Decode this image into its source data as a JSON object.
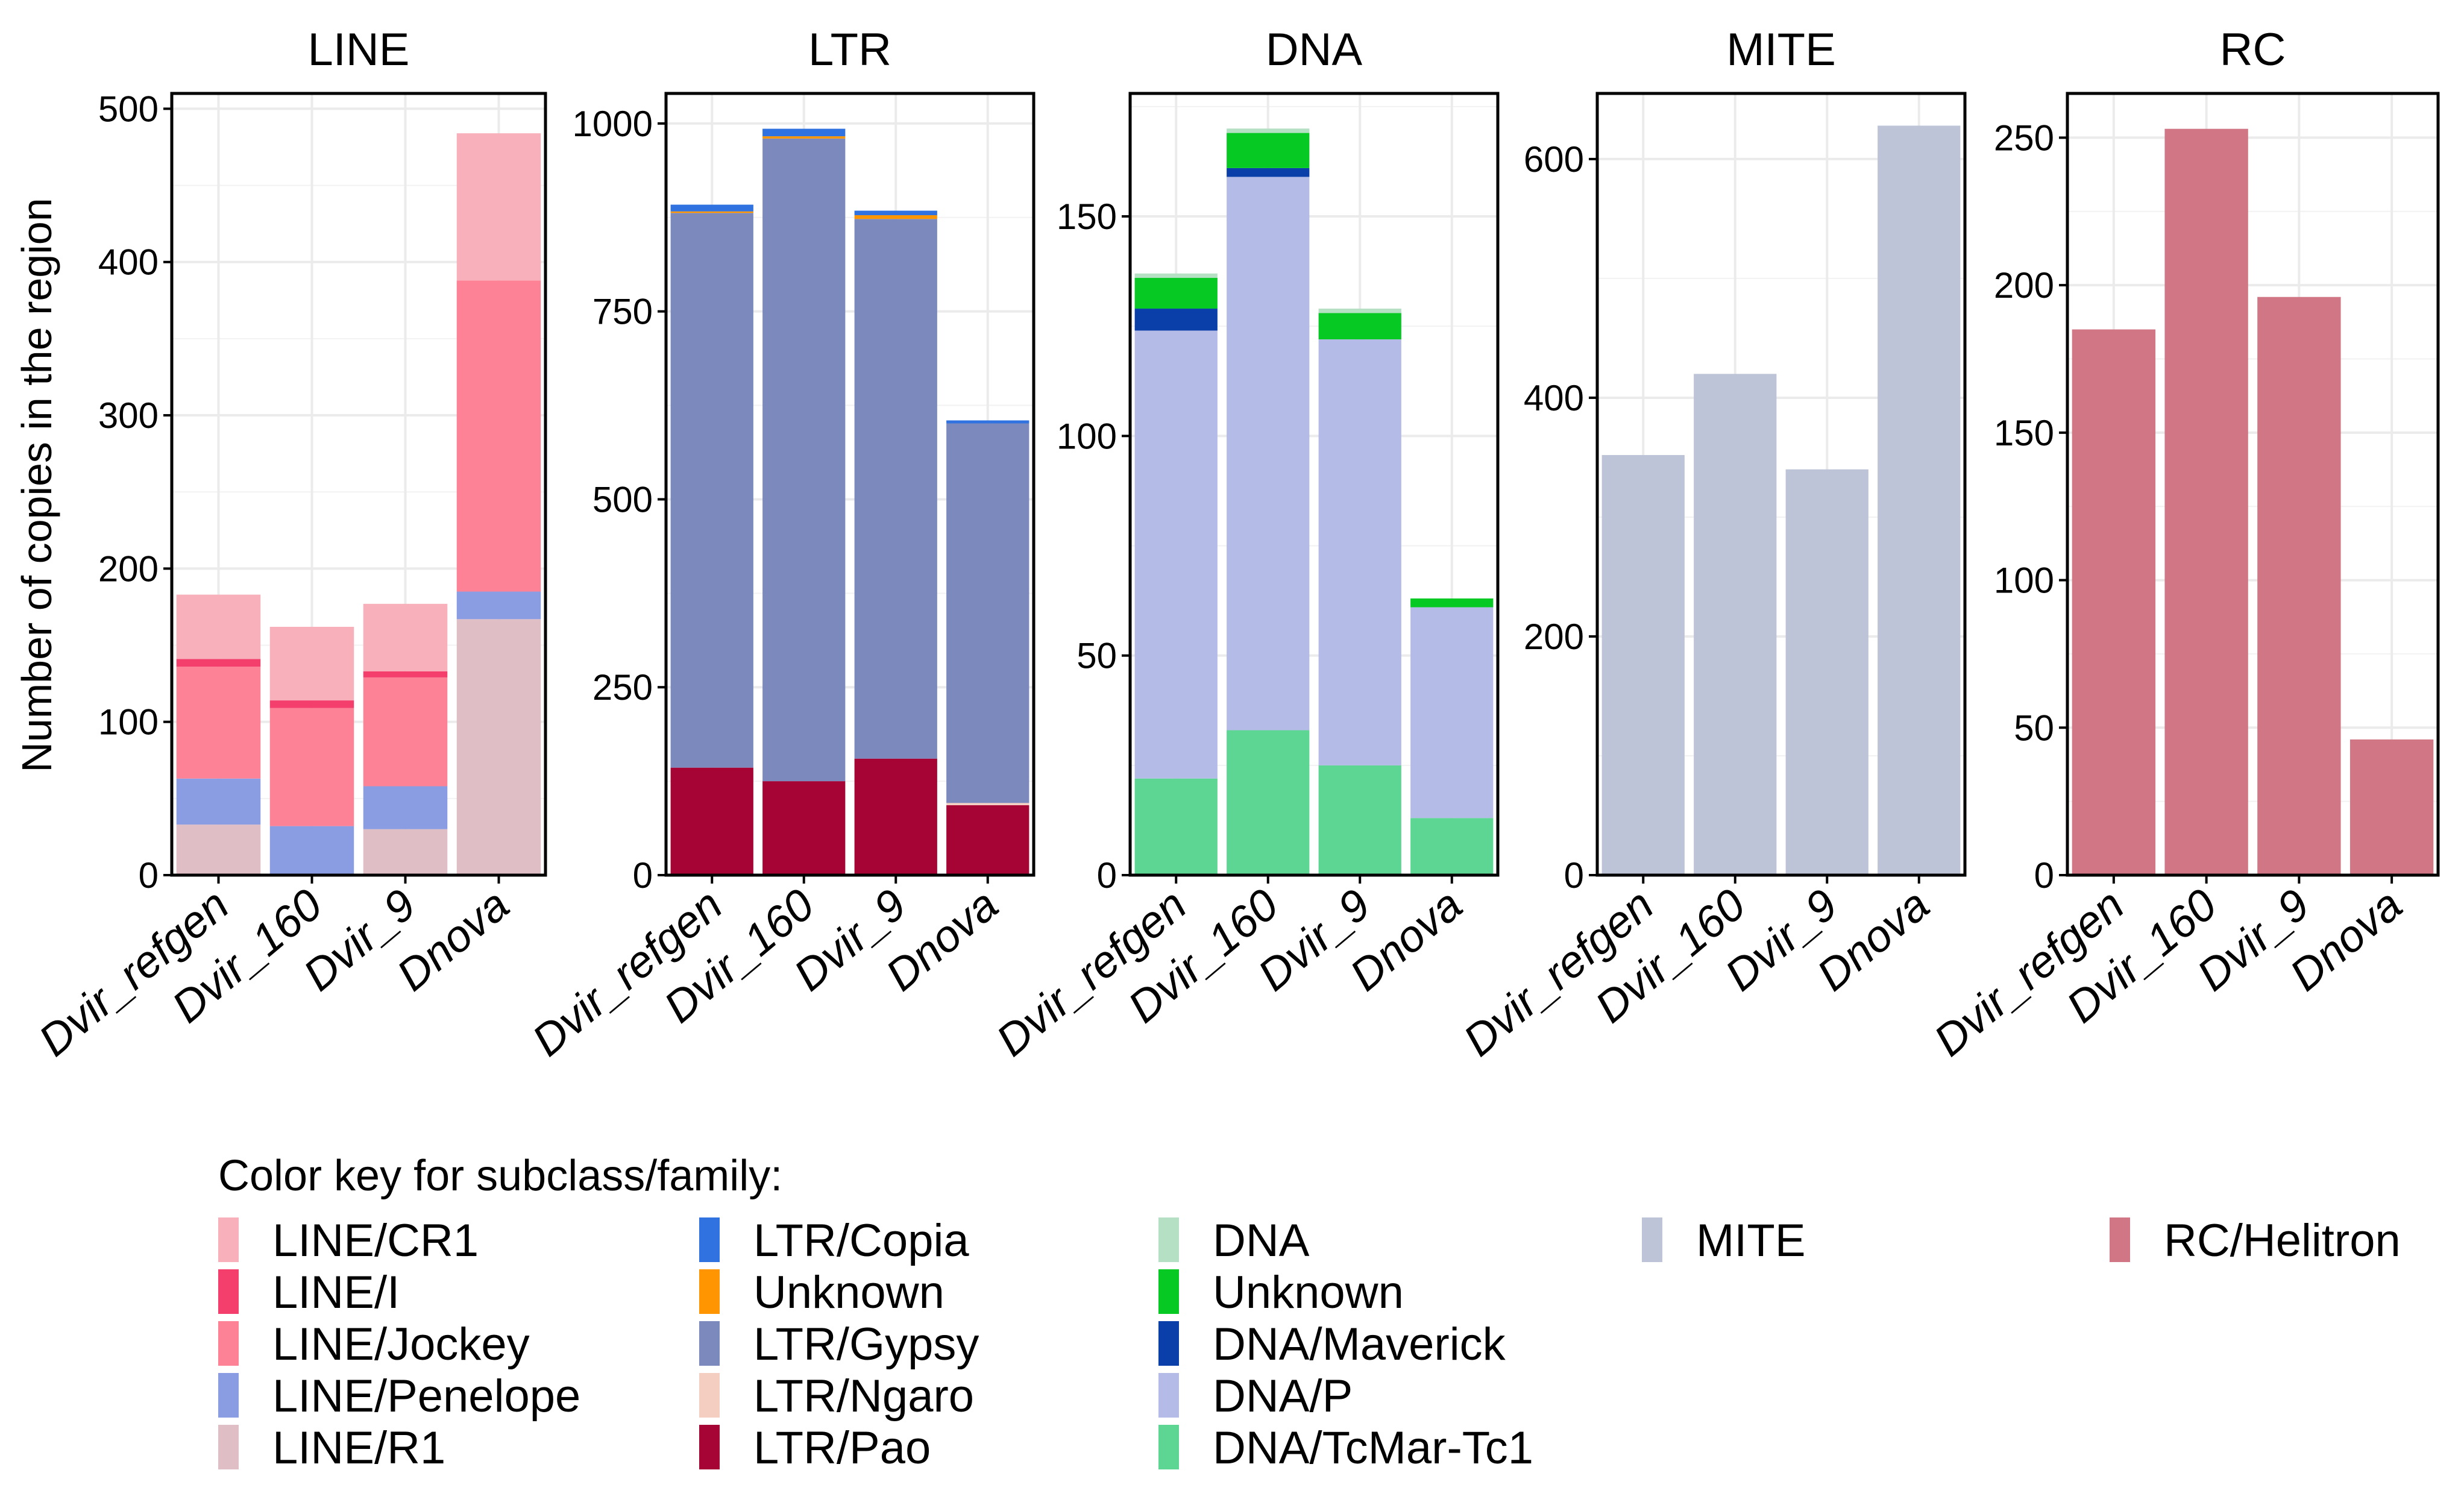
{
  "chart_data": {
    "type": "bar",
    "stacked": true,
    "ylabel": "Number of copies in the region",
    "categories": [
      "Dvir_refgen",
      "Dvir_160",
      "Dvir_9",
      "Dnova"
    ],
    "grid": true,
    "legend_title": "Color key for subclass/family:",
    "legend_placement": "bottom",
    "panels": [
      {
        "title": "LINE",
        "ylim": [
          0,
          510
        ],
        "yticks": [
          0,
          100,
          200,
          300,
          400,
          500
        ],
        "series": [
          {
            "name": "LINE/R1",
            "color": "#dfbec6",
            "values": [
              33,
              0,
              30,
              167
            ]
          },
          {
            "name": "LINE/Penelope",
            "color": "#8a9de2",
            "values": [
              30,
              32,
              28,
              18
            ]
          },
          {
            "name": "LINE/Jockey",
            "color": "#fd8296",
            "values": [
              73,
              77,
              71,
              203
            ]
          },
          {
            "name": "LINE/I",
            "color": "#f43f6d",
            "values": [
              5,
              5,
              4,
              0
            ]
          },
          {
            "name": "LINE/CR1",
            "color": "#f8b0bb",
            "values": [
              42,
              48,
              44,
              96
            ]
          }
        ]
      },
      {
        "title": "LTR",
        "ylim": [
          0,
          1040
        ],
        "yticks": [
          0,
          250,
          500,
          750,
          1000
        ],
        "series": [
          {
            "name": "LTR/Pao",
            "color": "#a50434",
            "values": [
              143,
              125,
              155,
              93
            ]
          },
          {
            "name": "LTR/Ngaro",
            "color": "#f4cfc1",
            "values": [
              0,
              0,
              0,
              3
            ]
          },
          {
            "name": "LTR/Gypsy",
            "color": "#7b89bd",
            "values": [
              738,
              855,
              718,
              505
            ]
          },
          {
            "name": "Unknown",
            "color": "#ff9500",
            "values": [
              2,
              3,
              5,
              0
            ]
          },
          {
            "name": "LTR/Copia",
            "color": "#2f72e0",
            "values": [
              9,
              10,
              6,
              4
            ]
          }
        ]
      },
      {
        "title": "DNA",
        "ylim": [
          0,
          178
        ],
        "yticks": [
          0,
          50,
          100,
          150
        ],
        "series": [
          {
            "name": "DNA/TcMar-Tc1",
            "color": "#5ed693",
            "values": [
              22,
              33,
              25,
              13
            ]
          },
          {
            "name": "DNA/P",
            "color": "#b3bbe6",
            "values": [
              102,
              126,
              97,
              48
            ]
          },
          {
            "name": "DNA/Maverick",
            "color": "#0a3faa",
            "values": [
              5,
              2,
              0,
              0
            ]
          },
          {
            "name": "Unknown",
            "color": "#07c924",
            "values": [
              7,
              8,
              6,
              2
            ]
          },
          {
            "name": "DNA",
            "color": "#b5e0c4",
            "values": [
              1,
              1,
              1,
              0
            ]
          }
        ]
      },
      {
        "title": "MITE",
        "ylim": [
          0,
          655
        ],
        "yticks": [
          0,
          200,
          400,
          600
        ],
        "series": [
          {
            "name": "MITE",
            "color": "#bec4d8",
            "values": [
              352,
              420,
              340,
              628
            ]
          }
        ]
      },
      {
        "title": "RC",
        "ylim": [
          0,
          265
        ],
        "yticks": [
          0,
          50,
          100,
          150,
          200,
          250
        ],
        "series": [
          {
            "name": "RC/Helitron",
            "color": "#d07684",
            "values": [
              185,
              253,
              196,
              46
            ]
          }
        ]
      }
    ],
    "legend_columns": [
      [
        {
          "name": "LINE/CR1",
          "color": "#f8b0bb"
        },
        {
          "name": "LINE/I",
          "color": "#f43f6d"
        },
        {
          "name": "LINE/Jockey",
          "color": "#fd8296"
        },
        {
          "name": "LINE/Penelope",
          "color": "#8a9de2"
        },
        {
          "name": "LINE/R1",
          "color": "#dfbec6"
        }
      ],
      [
        {
          "name": "LTR/Copia",
          "color": "#2f72e0"
        },
        {
          "name": "Unknown",
          "color": "#ff9500"
        },
        {
          "name": "LTR/Gypsy",
          "color": "#7b89bd"
        },
        {
          "name": "LTR/Ngaro",
          "color": "#f4cfc1"
        },
        {
          "name": "LTR/Pao",
          "color": "#a50434"
        }
      ],
      [
        {
          "name": "DNA",
          "color": "#b5e0c4"
        },
        {
          "name": "Unknown",
          "color": "#07c924"
        },
        {
          "name": "DNA/Maverick",
          "color": "#0a3faa"
        },
        {
          "name": "DNA/P",
          "color": "#b3bbe6"
        },
        {
          "name": "DNA/TcMar-Tc1",
          "color": "#5ed693"
        }
      ],
      [
        {
          "name": "MITE",
          "color": "#bec4d8"
        }
      ],
      [
        {
          "name": "RC/Helitron",
          "color": "#d07684"
        }
      ]
    ]
  }
}
